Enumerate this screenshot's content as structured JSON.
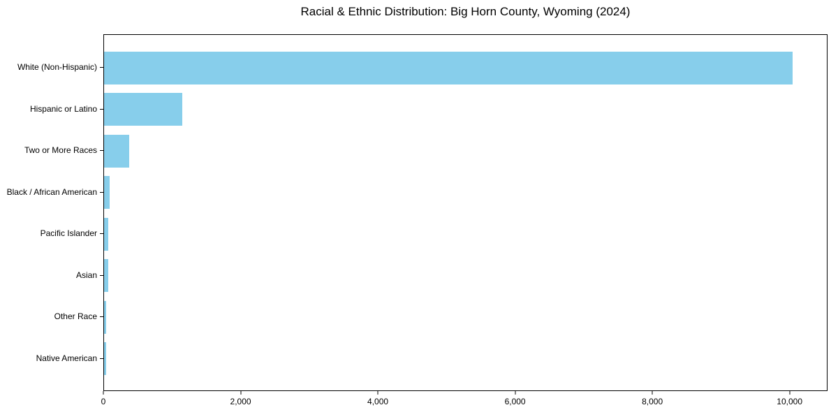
{
  "chart_data": {
    "type": "bar",
    "orientation": "horizontal",
    "title": "Racial & Ethnic Distribution: Big Horn County, Wyoming (2024)",
    "categories": [
      "White (Non-Hispanic)",
      "Hispanic or Latino",
      "Two or More Races",
      "Black / African American",
      "Pacific Islander",
      "Asian",
      "Other Race",
      "Native American"
    ],
    "values": [
      10050,
      1140,
      365,
      80,
      66,
      60,
      30,
      28
    ],
    "xlabel": "",
    "ylabel": "",
    "xlim": [
      0,
      10553
    ],
    "xticks": [
      {
        "value": 0,
        "label": "0"
      },
      {
        "value": 2000,
        "label": "2,000"
      },
      {
        "value": 4000,
        "label": "4,000"
      },
      {
        "value": 6000,
        "label": "6,000"
      },
      {
        "value": 8000,
        "label": "8,000"
      },
      {
        "value": 10000,
        "label": "10,000"
      }
    ],
    "bar_color": "#87CEEB",
    "axis_color": "#000000",
    "background_color": "#FFFFFF",
    "grid": false,
    "legend": null
  }
}
